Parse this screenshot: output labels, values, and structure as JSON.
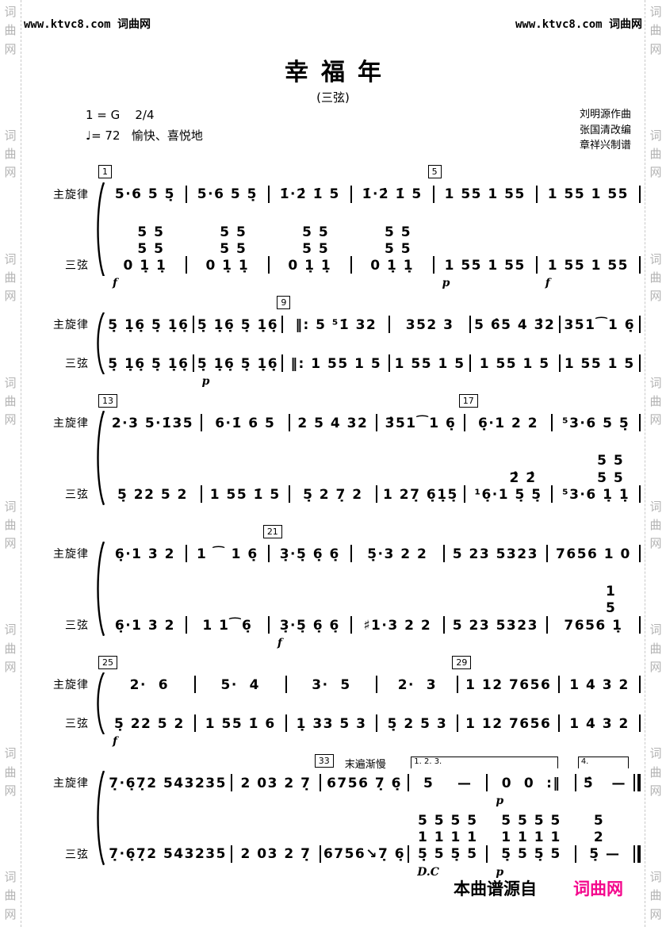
{
  "colors": {
    "accent_pink": "#f4078c",
    "watermark_gray": "#b3b3b3",
    "ink": "#000000"
  },
  "watermark": {
    "chars": "词\n曲\n网",
    "repeats_per_side": 8
  },
  "site_header": {
    "left": "www.ktvc8.com 词曲网",
    "right": "www.ktvc8.com 词曲网"
  },
  "header": {
    "title": "幸福年",
    "subtitle": "(三弦)",
    "key_signature": "1 = G",
    "meter": "2/4",
    "tempo": "♩= 72",
    "expression": "愉快、喜悦地",
    "credits": [
      "刘明源作曲",
      "张国清改编",
      "章祥兴制谱"
    ]
  },
  "part_labels": {
    "melody": "主旋律",
    "sanxian": "三弦"
  },
  "systems": [
    {
      "markers": [
        {
          "label": "1",
          "at": 0
        },
        {
          "label": "5",
          "at": 4
        }
      ],
      "parts": [
        {
          "role": "melody",
          "measures": [
            "5·6 5 5̣",
            "5·6 5 5̣",
            "1̇·2̇ 1̇ 5",
            "1̇·2̇ 1̇ 5",
            "1 55 1 55",
            "1 55 1 55"
          ],
          "dynamics": []
        },
        {
          "role": "sanxian",
          "measures": [
            "  5 5\n  5 5\n0 1̣ 1̣",
            "  5 5\n  5 5\n0 1̣ 1̣",
            "  5 5\n  5 5\n0 1̣ 1̣",
            "  5 5\n  5 5\n0 1̣ 1̣",
            "1 55 1 55",
            "1 55 1 55"
          ],
          "dynamics": [
            {
              "at": 0,
              "text": "f"
            },
            {
              "at": 4,
              "text": "p"
            },
            {
              "at": 5,
              "text": "f"
            }
          ]
        }
      ]
    },
    {
      "markers": [
        {
          "label": "9",
          "at": 2
        }
      ],
      "parts": [
        {
          "role": "melody",
          "measures": [
            "5̣ 1̣6̣ 5̣ 1̣6̣",
            "5̣ 1̣6̣ 5̣ 1̣6̣",
            "‖: 5 ⁵1̇ 32",
            "352 3",
            "5 6̂5 4 3̂2",
            "351⁀1 6̣"
          ],
          "dynamics": []
        },
        {
          "role": "sanxian",
          "measures": [
            "5̣ 1̣6̣ 5̣ 1̣6̣",
            "5̣ 1̣6̣ 5̣ 1̣6̣",
            "‖: 1 55 1 5",
            "1 55 1 5",
            "1 55 1 5",
            "1 55 1 5"
          ],
          "dynamics": [
            {
              "at": 1,
              "text": "p"
            }
          ]
        }
      ]
    },
    {
      "markers": [
        {
          "label": "13",
          "at": 0
        },
        {
          "label": "17",
          "at": 4
        }
      ],
      "parts": [
        {
          "role": "melody",
          "measures": [
            "2·3 5·1̇35",
            "6·1̇ 6 5",
            "2 5 4 32",
            "3̂51⁀1 6̣",
            "6̣·1 2 2",
            "⁵3·6 5 5̣"
          ],
          "dynamics": []
        },
        {
          "role": "sanxian",
          "measures": [
            "5̣ 22 5 2",
            "1 55 1̇ 5",
            "5̣ 2 7̣ 2",
            "1 27̣ 6̣1̣5̣",
            "     2̂ 2̂\n¹6̣·1 5̣ 5̣",
            "     5 5\n     5 5\n⁵3·6 1̣ 1̣"
          ],
          "dynamics": []
        }
      ]
    },
    {
      "markers": [
        {
          "label": "21",
          "at": 2
        }
      ],
      "parts": [
        {
          "role": "melody",
          "measures": [
            "6̣·1 3 2",
            "1 ⁀ 1 6̣",
            "3̣·5̣ 6̣ 6̣",
            "5̣·3 2 2",
            "5 23 5323",
            "7656 1 0"
          ],
          "dynamics": []
        },
        {
          "role": "sanxian",
          "measures": [
            "6̣·1 3 2",
            "1 1⁀6̣",
            "3̣·5̣ 6̣ 6̣",
            "♯1·3 2 2",
            "5 23 5323",
            "      1\n      5\n7656 1̣"
          ],
          "dynamics": [
            {
              "at": 2,
              "text": "f"
            }
          ]
        }
      ]
    },
    {
      "markers": [
        {
          "label": "25",
          "at": 0
        },
        {
          "label": "29",
          "at": 4
        }
      ],
      "parts": [
        {
          "role": "melody",
          "measures": [
            "2·  6",
            "5·  4",
            "3·  5",
            "2·  3",
            "1 12 7656",
            "1 4 3 2"
          ],
          "dynamics": []
        },
        {
          "role": "sanxian",
          "measures": [
            "5̣ 22 5 2",
            "1 55 1̇ 6",
            "1̣ 33 5 3",
            "5̣ 2 5 3",
            "1 12 7656",
            "1 4 3 2"
          ],
          "dynamics": [
            {
              "at": 0,
              "text": "f"
            }
          ]
        }
      ]
    },
    {
      "markers": [
        {
          "label": "33",
          "at": 2
        }
      ],
      "tempo_note": {
        "text": "末遍渐慢",
        "at": 2
      },
      "voltas": [
        {
          "label": "1. 2. 3.",
          "at": 3,
          "span": 2
        },
        {
          "label": "4.",
          "at": 5,
          "span": 1
        }
      ],
      "final_barline": true,
      "parts": [
        {
          "role": "melody",
          "measures": [
            "7̣·6̣7̣2 543235",
            "2 03 2 7̣",
            "6756 7̣ 6̣",
            "5    —",
            "0  0  :‖",
            "5̂   —"
          ],
          "dynamics": [
            {
              "at": 4,
              "text": "p"
            }
          ]
        },
        {
          "role": "sanxian",
          "measures": [
            "7̣·6̣7̣2 543235",
            "2 03 2 7̣",
            "6756↘7̣ 6̣",
            "5 5 5 5\n1 1 1 1\n5̣ 5 5̣ 5",
            "5 5 5 5\n1 1 1 1\n5̣ 5 5̣ 5",
            "5  \n2  \n5̣ —"
          ],
          "dynamics": [
            {
              "at": 3,
              "text": "D.C"
            },
            {
              "at": 4,
              "text": "p"
            }
          ]
        }
      ]
    }
  ],
  "footer": {
    "source_text": "本曲谱源自",
    "brand_text": "词曲网"
  }
}
